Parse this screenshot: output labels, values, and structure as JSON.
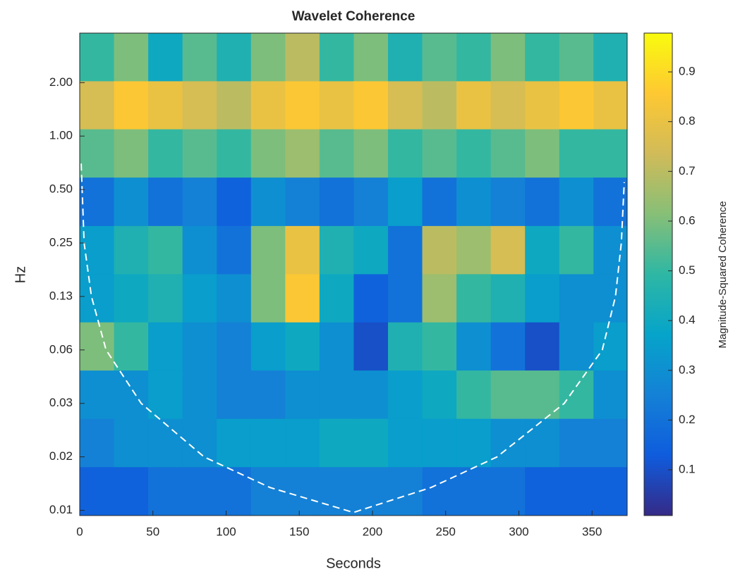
{
  "chart_data": {
    "type": "heatmap",
    "title": "Wavelet Coherence",
    "xlabel": "Seconds",
    "ylabel": "Hz",
    "colorbar_label": "Magnitude-Squared Coherence",
    "xlim": [
      0,
      374
    ],
    "xticks": [
      0,
      50,
      100,
      150,
      200,
      250,
      300,
      350
    ],
    "ylim": [
      0.0073,
      3.8
    ],
    "yscale": "log",
    "yticks": [
      {
        "value": 0.0078125,
        "label": "0.01"
      },
      {
        "value": 0.015625,
        "label": "0.02"
      },
      {
        "value": 0.03125,
        "label": "0.03"
      },
      {
        "value": 0.0625,
        "label": "0.06"
      },
      {
        "value": 0.125,
        "label": "0.13"
      },
      0.25,
      {
        "value": 0.5,
        "label": "0.50"
      },
      {
        "value": 1,
        "label": "1.00"
      },
      {
        "value": 2,
        "label": "2.00"
      }
    ],
    "clim": [
      0.008,
      0.978
    ],
    "cticks": [
      0.1,
      0.2,
      0.3,
      0.4,
      0.5,
      0.6,
      0.7,
      0.8,
      0.9
    ],
    "colormap": [
      "#352a87",
      "#0f5cdd",
      "#1481d6",
      "#06a4ca",
      "#2eb7a4",
      "#87bf77",
      "#d1bb59",
      "#fec832",
      "#f9fb0e"
    ],
    "x": [
      11.7,
      35.1,
      58.5,
      81.9,
      105.3,
      128.7,
      152.1,
      175.5,
      198.9,
      222.3,
      245.7,
      269.1,
      292.5,
      315.9,
      339.3,
      362.7
    ],
    "y": [
      2.78,
      1.49,
      0.8,
      0.426,
      0.228,
      0.122,
      0.0654,
      0.035,
      0.0187,
      0.01
    ],
    "z": [
      [
        0.5,
        0.6,
        0.4,
        0.55,
        0.45,
        0.6,
        0.7,
        0.5,
        0.6,
        0.45,
        0.55,
        0.5,
        0.6,
        0.5,
        0.55,
        0.45
      ],
      [
        0.75,
        0.85,
        0.8,
        0.75,
        0.7,
        0.8,
        0.85,
        0.8,
        0.85,
        0.75,
        0.7,
        0.8,
        0.75,
        0.8,
        0.85,
        0.8
      ],
      [
        0.55,
        0.6,
        0.5,
        0.55,
        0.5,
        0.6,
        0.65,
        0.55,
        0.6,
        0.5,
        0.55,
        0.5,
        0.55,
        0.6,
        0.5,
        0.5
      ],
      [
        0.2,
        0.3,
        0.2,
        0.25,
        0.15,
        0.3,
        0.25,
        0.2,
        0.25,
        0.35,
        0.2,
        0.3,
        0.25,
        0.2,
        0.3,
        0.2
      ],
      [
        0.35,
        0.45,
        0.5,
        0.3,
        0.2,
        0.6,
        0.8,
        0.45,
        0.4,
        0.2,
        0.7,
        0.65,
        0.75,
        0.4,
        0.5,
        0.3
      ],
      [
        0.35,
        0.4,
        0.45,
        0.35,
        0.3,
        0.6,
        0.85,
        0.4,
        0.15,
        0.2,
        0.65,
        0.5,
        0.45,
        0.35,
        0.3,
        0.3
      ],
      [
        0.6,
        0.5,
        0.35,
        0.3,
        0.25,
        0.35,
        0.4,
        0.3,
        0.1,
        0.45,
        0.5,
        0.3,
        0.2,
        0.1,
        0.3,
        0.35
      ],
      [
        0.3,
        0.3,
        0.35,
        0.3,
        0.25,
        0.25,
        0.3,
        0.3,
        0.3,
        0.35,
        0.4,
        0.5,
        0.55,
        0.55,
        0.5,
        0.3
      ],
      [
        0.25,
        0.3,
        0.3,
        0.3,
        0.35,
        0.35,
        0.35,
        0.4,
        0.4,
        0.35,
        0.35,
        0.35,
        0.3,
        0.3,
        0.25,
        0.25
      ],
      [
        0.15,
        0.15,
        0.2,
        0.2,
        0.2,
        0.25,
        0.25,
        0.25,
        0.25,
        0.25,
        0.2,
        0.2,
        0.2,
        0.15,
        0.15,
        0.15
      ]
    ],
    "coi": {
      "color": "#ffffff",
      "x": [
        1,
        3,
        8,
        18,
        42,
        85,
        130,
        187,
        240,
        285,
        331,
        357,
        366,
        370,
        372
      ],
      "y": [
        0.7,
        0.25,
        0.125,
        0.0625,
        0.03125,
        0.0156,
        0.0105,
        0.0076,
        0.0105,
        0.0156,
        0.03125,
        0.0625,
        0.125,
        0.25,
        0.55
      ]
    }
  }
}
